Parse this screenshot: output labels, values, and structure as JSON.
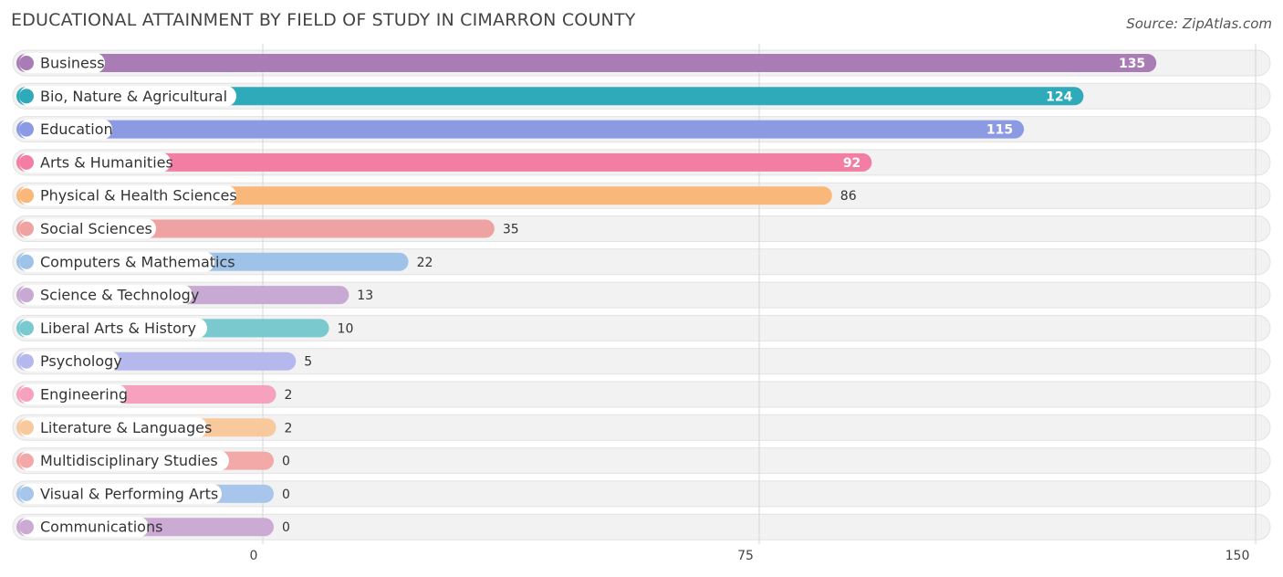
{
  "title": "EDUCATIONAL ATTAINMENT BY FIELD OF STUDY IN CIMARRON COUNTY",
  "source": "Source: ZipAtlas.com",
  "chart_data": {
    "type": "bar",
    "orientation": "horizontal",
    "title": "EDUCATIONAL ATTAINMENT BY FIELD OF STUDY IN CIMARRON COUNTY",
    "xlabel": "",
    "ylabel": "",
    "xlim": [
      0,
      150
    ],
    "xticks": [
      0,
      75,
      150
    ],
    "grid": true,
    "categories": [
      "Business",
      "Bio, Nature & Agricultural",
      "Education",
      "Arts & Humanities",
      "Physical & Health Sciences",
      "Social Sciences",
      "Computers & Mathematics",
      "Science & Technology",
      "Liberal Arts & History",
      "Psychology",
      "Engineering",
      "Literature & Languages",
      "Multidisciplinary Studies",
      "Visual & Performing Arts",
      "Communications"
    ],
    "values": [
      135,
      124,
      115,
      92,
      86,
      35,
      22,
      13,
      10,
      5,
      2,
      2,
      0,
      0,
      0
    ],
    "colors": [
      "#a97cb5",
      "#2eaabb",
      "#8c9ae3",
      "#f37ea3",
      "#f9b77a",
      "#eea3a2",
      "#9fc2e8",
      "#c8a9d3",
      "#79c9cf",
      "#b4b8ec",
      "#f6a2bf",
      "#f9c99e",
      "#f2a9a8",
      "#a8c6ec",
      "#cbaad3"
    ]
  }
}
